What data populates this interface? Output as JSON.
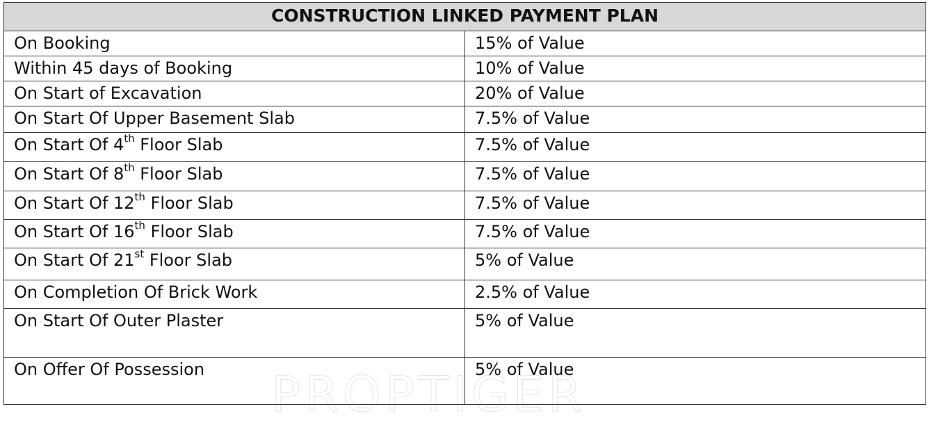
{
  "header": {
    "title": "CONSTRUCTION LINKED PAYMENT PLAN"
  },
  "table": {
    "rows": [
      {
        "stage": "On Booking",
        "payment": "15% of Value"
      },
      {
        "stage": "Within 45 days of Booking",
        "payment": "10% of Value"
      },
      {
        "stage": "On Start of Excavation",
        "payment": "20% of Value"
      },
      {
        "stage": "On Start Of Upper Basement Slab",
        "payment": "7.5% of Value"
      },
      {
        "stage": [
          "On Start Of 4",
          "th",
          " Floor Slab"
        ],
        "payment": "7.5% of Value"
      },
      {
        "stage": [
          "On Start Of 8",
          "th",
          " Floor Slab"
        ],
        "payment": "7.5% of Value"
      },
      {
        "stage": [
          "On Start Of 12",
          "th",
          " Floor Slab"
        ],
        "payment": "7.5% of Value"
      },
      {
        "stage": [
          "On Start Of 16",
          "th",
          " Floor Slab"
        ],
        "payment": "7.5% of Value"
      },
      {
        "stage": [
          "On Start Of 21",
          "st",
          " Floor Slab"
        ],
        "payment": "5% of Value"
      },
      {
        "stage": "On Completion Of Brick Work",
        "payment": "2.5% of Value"
      },
      {
        "stage": "On Start Of Outer Plaster",
        "payment": "5% of Value"
      },
      {
        "stage": "On Offer Of Possession",
        "payment": "5% of Value"
      }
    ]
  },
  "watermark": "PROPTIGER"
}
